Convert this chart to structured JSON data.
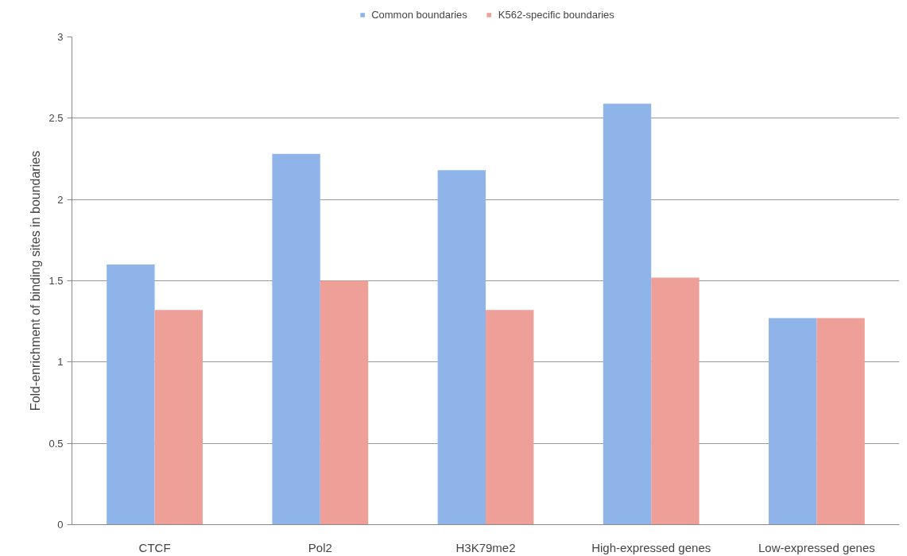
{
  "chart_data": {
    "type": "bar",
    "ylabel": "Fold-enrichment of binding sites in boundaries",
    "categories": [
      "CTCF",
      "Pol2",
      "H3K79me2",
      "High-expressed genes",
      "Low-expressed genes"
    ],
    "series": [
      {
        "name": "Common boundaries",
        "color": "#8fb4ea",
        "values": [
          1.6,
          2.28,
          2.18,
          2.59,
          1.27
        ]
      },
      {
        "name": "K562-specific boundaries",
        "color": "#ee9f98",
        "values": [
          1.32,
          1.5,
          1.32,
          1.52,
          1.27
        ]
      }
    ],
    "ylim": [
      0,
      3
    ],
    "yticks": [
      0,
      0.5,
      1,
      1.5,
      2,
      2.5,
      3
    ],
    "grid": "y",
    "legend": "top"
  }
}
